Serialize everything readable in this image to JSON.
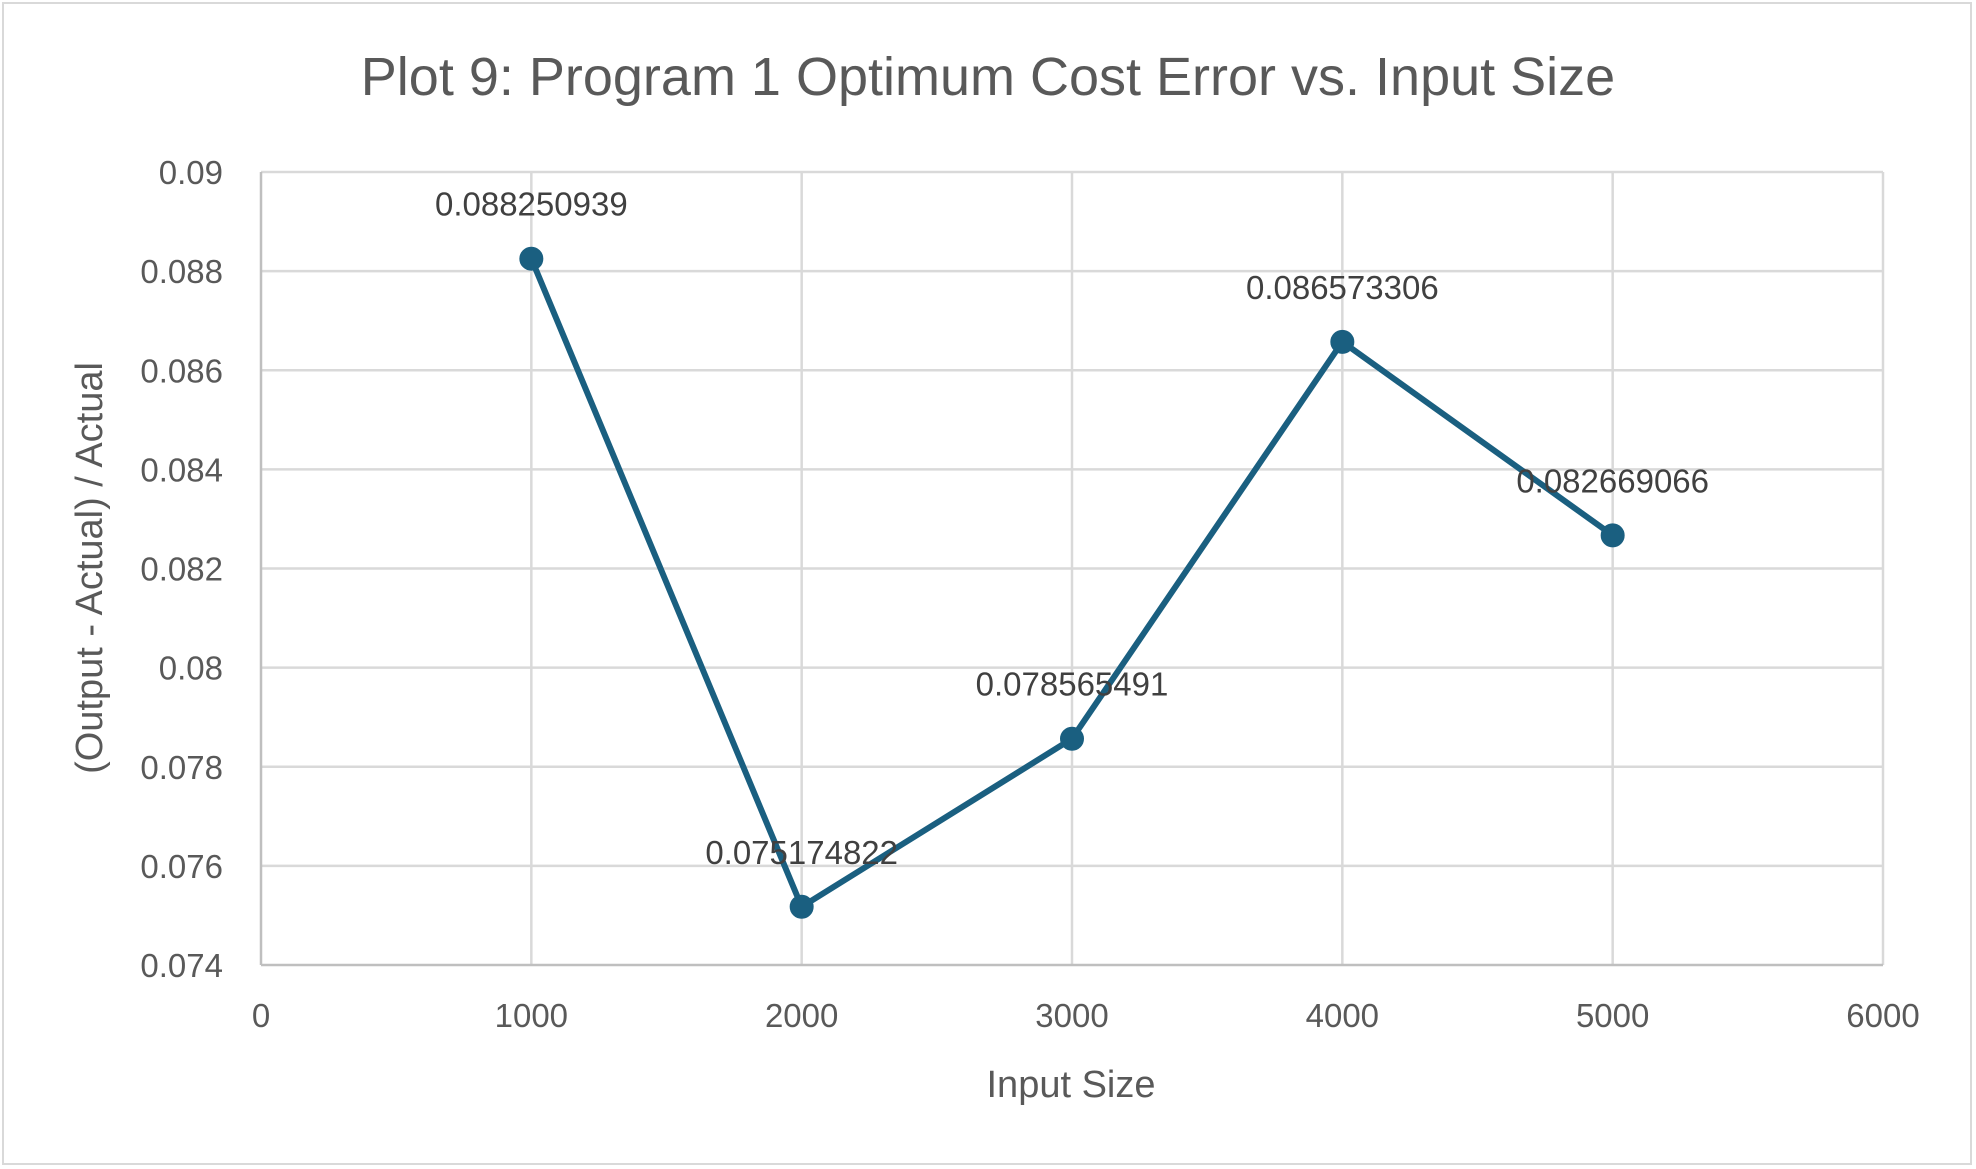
{
  "chart_data": {
    "type": "line",
    "title": "Plot 9: Program 1 Optimum Cost Error vs. Input Size",
    "xlabel": "Input Size",
    "ylabel": "(Output - Actual) / Actual",
    "xlim": [
      0,
      6000
    ],
    "ylim": [
      0.074,
      0.09
    ],
    "x_ticks": [
      0,
      1000,
      2000,
      3000,
      4000,
      5000,
      6000
    ],
    "x_tick_labels": [
      "0",
      "1000",
      "2000",
      "3000",
      "4000",
      "5000",
      "6000"
    ],
    "y_ticks": [
      0.074,
      0.076,
      0.078,
      0.08,
      0.082,
      0.084,
      0.086,
      0.088,
      0.09
    ],
    "y_tick_labels": [
      "0.074",
      "0.076",
      "0.078",
      "0.08",
      "0.082",
      "0.084",
      "0.086",
      "0.088",
      "0.09"
    ],
    "grid": true,
    "legend": "none",
    "series": [
      {
        "color": "#1a5f80",
        "x": [
          1000,
          2000,
          3000,
          4000,
          5000
        ],
        "y": [
          0.088250939,
          0.075174822,
          0.078565491,
          0.086573306,
          0.082669066
        ],
        "data_labels": [
          "0.088250939",
          "0.075174822",
          "0.078565491",
          "0.086573306",
          "0.082669066"
        ]
      }
    ]
  }
}
